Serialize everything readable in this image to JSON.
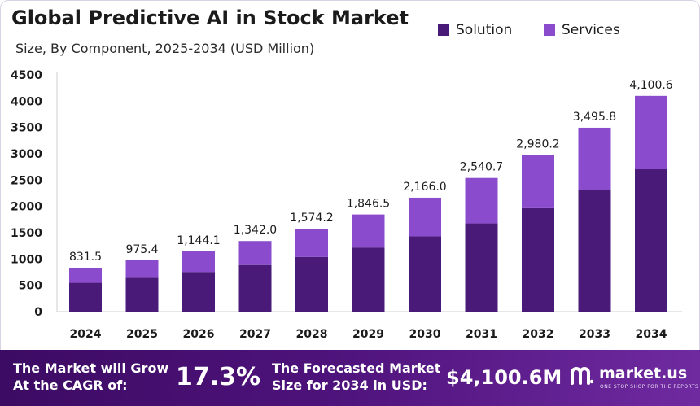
{
  "chart_data": {
    "type": "bar",
    "stacked": true,
    "title": "Global Predictive AI in Stock Market",
    "subtitle": "Size, By Component, 2025-2034 (USD Million)",
    "categories": [
      "2024",
      "2025",
      "2026",
      "2027",
      "2028",
      "2029",
      "2030",
      "2031",
      "2032",
      "2033",
      "2034"
    ],
    "series": [
      {
        "name": "Solution",
        "color": "#4a1a78",
        "values": [
          548,
          643,
          755,
          886,
          1039,
          1219,
          1430,
          1677,
          1967,
          2307,
          2706
        ]
      },
      {
        "name": "Services",
        "color": "#8a4bcc",
        "values": [
          283.5,
          332.4,
          389.1,
          456.0,
          535.2,
          627.5,
          736.0,
          863.7,
          1013.2,
          1188.8,
          1394.6
        ]
      }
    ],
    "totals": [
      "831.5",
      "975.4",
      "1,144.1",
      "1,342.0",
      "1,574.2",
      "1,846.5",
      "2,166.0",
      "2,540.7",
      "2,980.2",
      "3,495.8",
      "4,100.6"
    ],
    "yticks": [
      "0",
      "500",
      "1000",
      "1500",
      "2000",
      "2500",
      "3000",
      "3500",
      "4000",
      "4500"
    ],
    "ylim": [
      0,
      4500
    ],
    "legend_position": "top-right",
    "grid": false
  },
  "footer": {
    "cagr_text_line1": "The Market will Grow",
    "cagr_text_line2": "At the CAGR of:",
    "cagr_value": "17.3%",
    "forecast_text_line1": "The Forecasted Market",
    "forecast_text_line2": "Size for 2034 in USD:",
    "forecast_value": "$4,100.6M"
  },
  "brand": {
    "name": "market.us",
    "tagline": "ONE STOP SHOP FOR THE REPORTS",
    "logo_icon": "market-us-logo-icon"
  }
}
